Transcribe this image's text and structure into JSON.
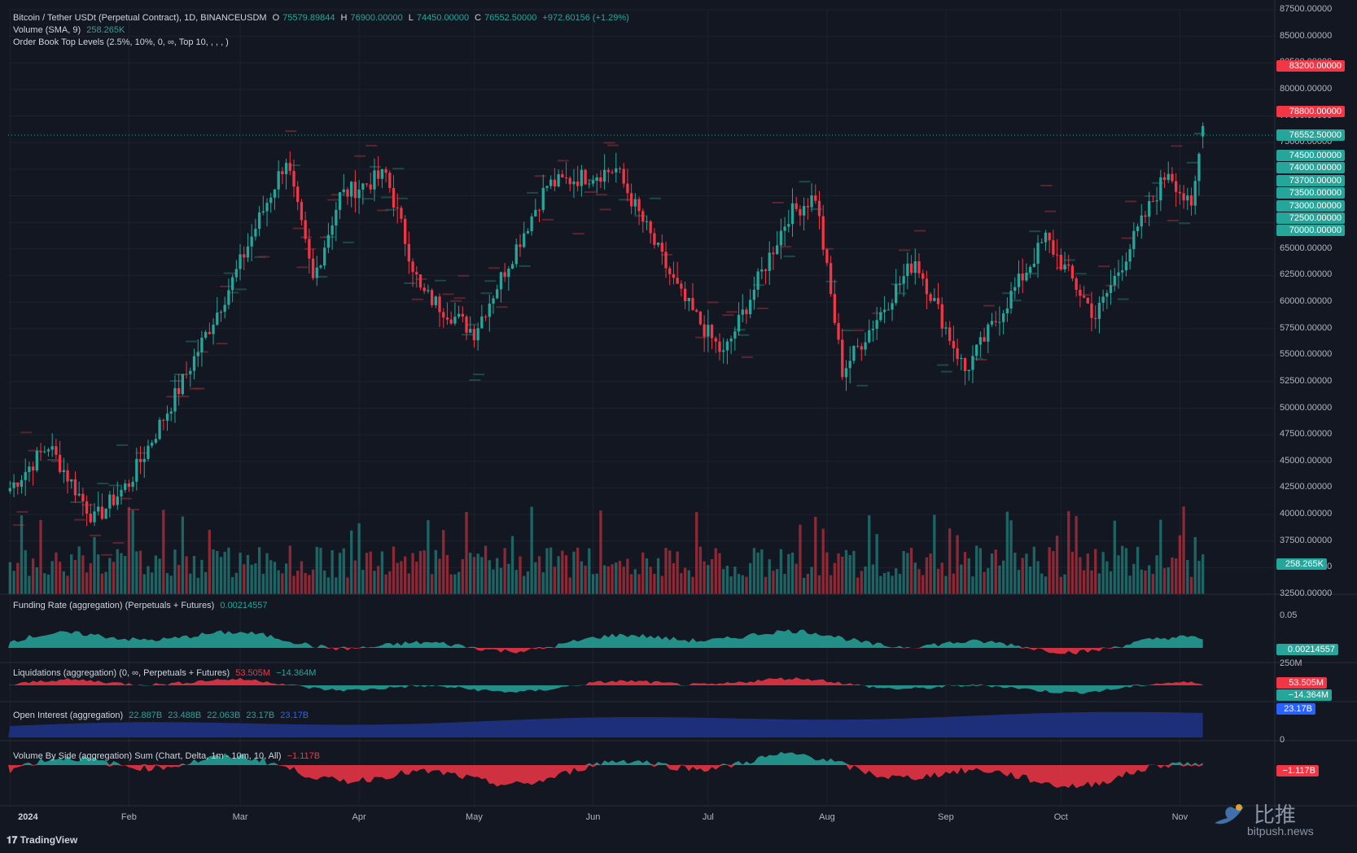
{
  "header": {
    "symbol": "Bitcoin / Tether USDt (Perpetual Contract), 1D, BINANCEUSDM",
    "open_label": "O",
    "open": "75579.89844",
    "high_label": "H",
    "high": "76900.00000",
    "low_label": "L",
    "low": "74450.00000",
    "close_label": "C",
    "close": "76552.50000",
    "change": "+972.60156 (+1.29%)",
    "volume_label": "Volume (SMA, 9)",
    "volume_value": "258.265K",
    "orderbook_label": "Order Book Top Levels (2.5%, 10%, 0, ∞, Top 10, , , , )"
  },
  "panes": {
    "funding": {
      "label": "Funding Rate (aggregation) (Perpetuals + Futures)",
      "value": "0.00214557",
      "tick": "0.05",
      "price_tag": "0.00214557"
    },
    "liquidations": {
      "label": "Liquidations (aggregation) (0, ∞, Perpetuals + Futures)",
      "long_value": "53.505M",
      "short_value": "−14.364M",
      "tick": "250M",
      "tag_long": "53.505M",
      "tag_short": "−14.364M"
    },
    "open_interest": {
      "label": "Open Interest (aggregation)",
      "v1": "22.887B",
      "v2": "23.488B",
      "v3": "22.063B",
      "v4": "23.17B",
      "v5": "23.17B",
      "tag": "23.17B",
      "tick_zero": "0"
    },
    "volume_side": {
      "label": "Volume By Side (aggregation) Sum (Chart, Delta, 1m - 10m, 10, All)",
      "value": "−1.117B",
      "tag": "−1.117B"
    }
  },
  "price_axis": {
    "ticks": [
      "87500.00000",
      "85000.00000",
      "82500.00000",
      "80000.00000",
      "77500.00000",
      "75000.00000",
      "72500.00000",
      "70000.00000",
      "67500.00000",
      "65000.00000",
      "62500.00000",
      "60000.00000",
      "57500.00000",
      "55000.00000",
      "52500.00000",
      "50000.00000",
      "47500.00000",
      "45000.00000",
      "42500.00000",
      "40000.00000",
      "37500.00000",
      "35000.00000",
      "32500.00000"
    ],
    "tags_red": [
      "83200.00000",
      "78800.00000"
    ],
    "tag_last": "76552.50000",
    "tags_green": [
      "74500.00000",
      "74000.00000",
      "73700.00000",
      "73500.00000",
      "73000.00000",
      "72500.00000",
      "70000.00000"
    ],
    "volume_tag": "258.265K"
  },
  "time_axis": [
    "2024",
    "Feb",
    "Mar",
    "Apr",
    "May",
    "Jun",
    "Jul",
    "Aug",
    "Sep",
    "Oct",
    "Nov"
  ],
  "branding": {
    "tradingview": "TradingView",
    "watermark_cn": "比推",
    "watermark_site": "bitpush.news"
  },
  "colors": {
    "up": "#26a69a",
    "down": "#f23645",
    "oi": "#1e2f7a",
    "bg": "#131722",
    "grid": "#1e222d"
  },
  "chart_data": {
    "type": "candlestick",
    "title": "Bitcoin / Tether USDt (Perpetual Contract), 1D, BINANCEUSDM",
    "x_start": "2024-01-01",
    "x_end": "2024-11-07",
    "ylim": [
      32500,
      87500
    ],
    "last_candle": {
      "open": 75579.89844,
      "high": 76900.0,
      "low": 74450.0,
      "close": 76552.5
    },
    "close_path": [
      {
        "date": "2024-01-01",
        "close": 42500
      },
      {
        "date": "2024-01-11",
        "close": 46500
      },
      {
        "date": "2024-01-23",
        "close": 39500
      },
      {
        "date": "2024-02-01",
        "close": 43000
      },
      {
        "date": "2024-02-14",
        "close": 51800
      },
      {
        "date": "2024-02-28",
        "close": 62000
      },
      {
        "date": "2024-03-05",
        "close": 67000
      },
      {
        "date": "2024-03-13",
        "close": 73500
      },
      {
        "date": "2024-03-20",
        "close": 62000
      },
      {
        "date": "2024-03-27",
        "close": 70000
      },
      {
        "date": "2024-04-08",
        "close": 72000
      },
      {
        "date": "2024-04-17",
        "close": 61000
      },
      {
        "date": "2024-05-01",
        "close": 57200
      },
      {
        "date": "2024-05-20",
        "close": 71000
      },
      {
        "date": "2024-06-07",
        "close": 72500
      },
      {
        "date": "2024-06-24",
        "close": 60500
      },
      {
        "date": "2024-07-05",
        "close": 55000
      },
      {
        "date": "2024-07-22",
        "close": 68200
      },
      {
        "date": "2024-07-29",
        "close": 70000
      },
      {
        "date": "2024-08-05",
        "close": 53500
      },
      {
        "date": "2024-08-24",
        "close": 64000
      },
      {
        "date": "2024-09-06",
        "close": 53500
      },
      {
        "date": "2024-09-27",
        "close": 66000
      },
      {
        "date": "2024-10-10",
        "close": 58600
      },
      {
        "date": "2024-10-29",
        "close": 72500
      },
      {
        "date": "2024-11-04",
        "close": 68500
      },
      {
        "date": "2024-11-07",
        "close": 76552.5
      }
    ],
    "volume": {
      "series_name": "Volume (SMA, 9)",
      "last": "258.265K"
    },
    "funding_rate": {
      "last": 0.00214557,
      "ylim": [
        0,
        0.05
      ]
    },
    "liquidations": {
      "last_long": "53.505M",
      "last_short": "−14.364M"
    },
    "open_interest": {
      "last": "23.17B"
    },
    "volume_by_side": {
      "last": "−1.117B"
    }
  }
}
